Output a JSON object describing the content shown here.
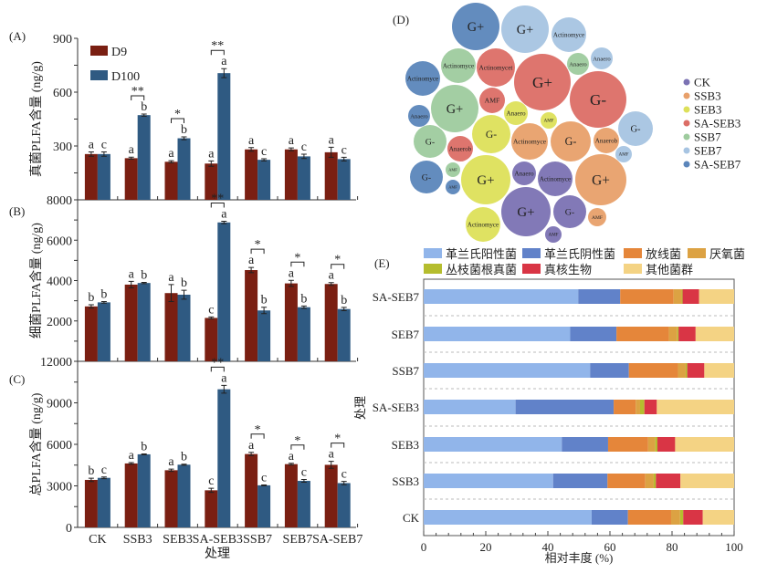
{
  "chart_data": [
    {
      "panel": "(A)",
      "type": "bar",
      "ylabel": "真菌PLFA含量 (ng/g)",
      "xlabel": "",
      "ylim": [
        0,
        900
      ],
      "yticks": [
        300,
        600,
        900
      ],
      "legend_placement": "top-left",
      "categories": [
        "CK",
        "SSB3",
        "SEB3",
        "SA-SEB3",
        "SSB7",
        "SEB7",
        "SA-SEB7"
      ],
      "series": [
        {
          "name": "D9",
          "color": "#7a1f12",
          "values": [
            255,
            232,
            212,
            202,
            281,
            281,
            265
          ],
          "errors": [
            12,
            6,
            6,
            15,
            10,
            8,
            28
          ],
          "letters": [
            "a",
            "a",
            "a",
            "a",
            "a",
            "a",
            "a"
          ]
        },
        {
          "name": "D100",
          "color": "#2f5a82",
          "values": [
            255,
            472,
            343,
            706,
            223,
            242,
            227
          ],
          "errors": [
            12,
            6,
            8,
            25,
            6,
            12,
            10
          ],
          "letters": [
            "c",
            "b",
            "b",
            "a",
            "c",
            "c",
            "c"
          ]
        }
      ],
      "significance": [
        "",
        "**",
        "*",
        "**",
        "",
        "",
        ""
      ]
    },
    {
      "panel": "(B)",
      "type": "bar",
      "ylabel": "细菌PLFA含量 (ng/g)",
      "xlabel": "",
      "ylim": [
        0,
        8000
      ],
      "yticks": [
        2000,
        4000,
        6000,
        8000
      ],
      "categories": [
        "CK",
        "SSB3",
        "SEB3",
        "SA-SEB3",
        "SSB7",
        "SEB7",
        "SA-SEB7"
      ],
      "series": [
        {
          "name": "D9",
          "color": "#7a1f12",
          "values": [
            2720,
            3800,
            3380,
            2150,
            4520,
            3860,
            3830
          ],
          "errors": [
            80,
            160,
            420,
            50,
            130,
            150,
            70
          ],
          "letters": [
            "b",
            "a",
            "a",
            "c",
            "a",
            "a",
            "a"
          ]
        },
        {
          "name": "D100",
          "color": "#2f5a82",
          "values": [
            2920,
            3880,
            3300,
            6880,
            2520,
            2680,
            2590
          ],
          "errors": [
            40,
            30,
            220,
            60,
            160,
            60,
            80
          ],
          "letters": [
            "b",
            "b",
            "b",
            "a",
            "b",
            "b",
            "b"
          ]
        }
      ],
      "significance": [
        "",
        "",
        "",
        "**",
        "*",
        "*",
        "*"
      ]
    },
    {
      "panel": "(C)",
      "type": "bar",
      "ylabel": "总PLFA含量 (ng/g)",
      "xlabel": "处理",
      "ylim": [
        0,
        12000
      ],
      "yticks": [
        0,
        3000,
        6000,
        9000,
        12000
      ],
      "categories": [
        "CK",
        "SSB3",
        "SEB3",
        "SA-SEB3",
        "SSB7",
        "SEB7",
        "SA-SEB7"
      ],
      "series": [
        {
          "name": "D9",
          "color": "#7a1f12",
          "values": [
            3430,
            4620,
            4130,
            2680,
            5300,
            4570,
            4520
          ],
          "errors": [
            120,
            60,
            80,
            150,
            120,
            60,
            250
          ],
          "letters": [
            "b",
            "a",
            "a",
            "c",
            "a",
            "a",
            "a"
          ]
        },
        {
          "name": "D100",
          "color": "#2f5a82",
          "values": [
            3580,
            5280,
            4530,
            9980,
            3040,
            3360,
            3200
          ],
          "errors": [
            60,
            30,
            40,
            280,
            30,
            100,
            120
          ],
          "letters": [
            "c",
            "b",
            "b",
            "a",
            "c",
            "c",
            "c"
          ]
        }
      ],
      "significance": [
        "",
        "",
        "",
        "**",
        "*",
        "*",
        "*"
      ]
    },
    {
      "panel": "(D)",
      "type": "bubble",
      "legend_placement": "right",
      "groups": [
        {
          "name": "CK",
          "color": "#7b72b3"
        },
        {
          "name": "SSB3",
          "color": "#e8a06a"
        },
        {
          "name": "SEB3",
          "color": "#dde05a"
        },
        {
          "name": "SA-SEB3",
          "color": "#dc6e66"
        },
        {
          "name": "SSB7",
          "color": "#9ecb9e"
        },
        {
          "name": "SEB7",
          "color": "#a7c4e2"
        },
        {
          "name": "SA-SEB7",
          "color": "#5b86bb"
        }
      ],
      "bubbles": [
        {
          "group": "SA-SEB7",
          "label": "G+",
          "size": 26
        },
        {
          "group": "SEB7",
          "label": "G+",
          "size": 26
        },
        {
          "group": "SEB7",
          "label": "Actinomyce",
          "size": 19
        },
        {
          "group": "SSB7",
          "label": "Actinomyce",
          "size": 19
        },
        {
          "group": "SA-SEB3",
          "label": "Actinomycet",
          "size": 21
        },
        {
          "group": "SA-SEB3",
          "label": "G+",
          "size": 31
        },
        {
          "group": "SSB7",
          "label": "Anaero",
          "size": 12
        },
        {
          "group": "SEB7",
          "label": "Anaero",
          "size": 12
        },
        {
          "group": "SA-SEB7",
          "label": "Actinomyce",
          "size": 19
        },
        {
          "group": "SA-SEB3",
          "label": "G-",
          "size": 31
        },
        {
          "group": "SSB7",
          "label": "G+",
          "size": 26
        },
        {
          "group": "SA-SEB3",
          "label": "AMF",
          "size": 14
        },
        {
          "group": "SEB3",
          "label": "Anaero",
          "size": 13
        },
        {
          "group": "SEB3",
          "label": "AMF",
          "size": 9
        },
        {
          "group": "SA-SEB7",
          "label": "Anaero",
          "size": 12
        },
        {
          "group": "SEB7",
          "label": "G-",
          "size": 19
        },
        {
          "group": "SSB7",
          "label": "G-",
          "size": 18
        },
        {
          "group": "SEB3",
          "label": "G-",
          "size": 21
        },
        {
          "group": "SSB3",
          "label": "Actinomyce",
          "size": 20
        },
        {
          "group": "SSB3",
          "label": "G-",
          "size": 22
        },
        {
          "group": "SSB3",
          "label": "Anaerob",
          "size": 14
        },
        {
          "group": "SEB7",
          "label": "AMF",
          "size": 9
        },
        {
          "group": "SA-SEB3",
          "label": "Anaerob",
          "size": 14
        },
        {
          "group": "SA-SEB7",
          "label": "G-",
          "size": 18
        },
        {
          "group": "SSB7",
          "label": "AMF",
          "size": 8
        },
        {
          "group": "SA-SEB7",
          "label": "AMF",
          "size": 8
        },
        {
          "group": "SEB3",
          "label": "G+",
          "size": 27
        },
        {
          "group": "CK",
          "label": "Anaero",
          "size": 13
        },
        {
          "group": "CK",
          "label": "Actinomyce",
          "size": 19
        },
        {
          "group": "SSB3",
          "label": "G+",
          "size": 28
        },
        {
          "group": "CK",
          "label": "G+",
          "size": 27
        },
        {
          "group": "CK",
          "label": "G-",
          "size": 18
        },
        {
          "group": "SSB3",
          "label": "AMF",
          "size": 10
        },
        {
          "group": "SEB3",
          "label": "Actinomyce",
          "size": 19
        },
        {
          "group": "CK",
          "label": "AMF",
          "size": 9
        }
      ]
    },
    {
      "panel": "(E)",
      "type": "stacked-bar-horizontal",
      "xlabel": "相对丰度 (%)",
      "ylabel": "处理",
      "xlim": [
        0,
        100
      ],
      "xticks": [
        0,
        20,
        40,
        60,
        80,
        100
      ],
      "legend_placement": "top",
      "categories": [
        "SA-SEB7",
        "SEB7",
        "SSB7",
        "SA-SEB3",
        "SEB3",
        "SSB3",
        "CK"
      ],
      "series": [
        {
          "name": "革兰氏阳性菌",
          "color": "#91b5ea",
          "values": [
            49.8,
            47.2,
            53.6,
            29.6,
            44.5,
            41.7,
            54.1
          ]
        },
        {
          "name": "革兰氏阴性菌",
          "color": "#6182c9",
          "values": [
            13.5,
            14.9,
            12.5,
            31.6,
            14.9,
            17.5,
            11.7
          ]
        },
        {
          "name": "放线菌",
          "color": "#e5863a",
          "values": [
            17.2,
            16.9,
            15.8,
            7.1,
            12.9,
            12.2,
            13.9
          ]
        },
        {
          "name": "厌氧菌",
          "color": "#dca243",
          "values": [
            2.6,
            2.7,
            2.5,
            1.4,
            2.3,
            2.7,
            2.9
          ]
        },
        {
          "name": "丛枝菌根真菌",
          "color": "#b5bd2e",
          "values": [
            0.3,
            0.4,
            0.5,
            1.4,
            0.7,
            0.7,
            1.0
          ]
        },
        {
          "name": "真核生物",
          "color": "#d93545",
          "values": [
            5.3,
            5.5,
            5.5,
            4.0,
            5.7,
            7.9,
            6.3
          ]
        },
        {
          "name": "其他菌群",
          "color": "#f4d384",
          "values": [
            11.3,
            12.4,
            9.6,
            24.9,
            19.0,
            17.3,
            10.1
          ]
        }
      ]
    }
  ]
}
